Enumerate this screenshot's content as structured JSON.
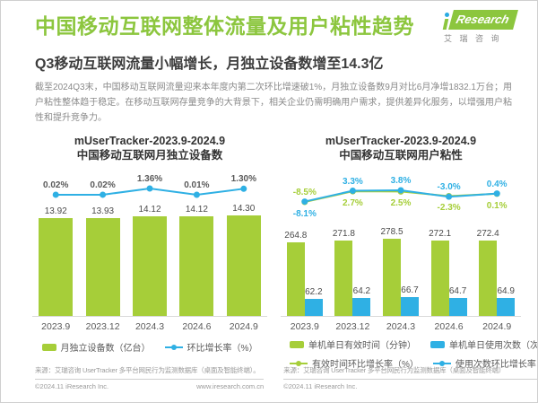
{
  "page": {
    "header": {
      "title": "中国移动互联网整体流量及用户粘性趋势",
      "subtitle": "Q3移动互联网流量小幅增长，月独立设备数增至14.3亿",
      "logo": {
        "brand": "Research",
        "sub": "艾 瑞 咨 询"
      }
    },
    "intro": "截至2024Q3末，中国移动互联网流量迎来本年度内第二次环比增速破1%，月独立设备数9月对比6月净增1832.1万台；用户粘性整体趋于稳定。在移动互联网存量竞争的大背景下，相关企业仍需明确用户需求，提供差异化服务，以增强用户粘性和提升竞争力。",
    "colors": {
      "green": "#8CC63E",
      "bar_green": "#A6CE39",
      "blue": "#2FB0E4",
      "label_gray": "#595959"
    },
    "footers": {
      "left": {
        "source": "来源：艾瑞咨询 UserTracker 多平台网民行为监测数据库（桌面及智能终端）。",
        "copyright": "©2024.11 iResearch Inc.",
        "website": "www.iresearch.com.cn"
      },
      "right": {
        "source": "来源：艾瑞咨询 UserTracker 多平台网民行为监测数据库（桌面及智能终端）",
        "copyright": "©2024.11 iResearch Inc."
      }
    }
  },
  "chart_data": [
    {
      "type": "bar",
      "title": "mUserTracker-2023.9-2024.9",
      "subtitle": "中国移动互联网月独立设备数",
      "categories": [
        "2023.9",
        "2023.12",
        "2024.3",
        "2024.6",
        "2024.9"
      ],
      "bar_series": [
        {
          "name": "月独立设备数（亿台）",
          "color": "#A6CE39",
          "values": [
            13.92,
            13.93,
            14.12,
            14.12,
            14.3
          ],
          "labels": [
            "13.92",
            "13.93",
            "14.12",
            "14.12",
            "14.30"
          ]
        }
      ],
      "line_series": [
        {
          "name": "环比增长率（%）",
          "color": "#2FB0E4",
          "label_color": "#595959",
          "values": [
            0.02,
            0.02,
            1.36,
            0.01,
            1.3
          ],
          "labels": [
            "0.02%",
            "0.02%",
            "1.36%",
            "0.01%",
            "1.30%"
          ],
          "label_pos": [
            "above",
            "above",
            "above",
            "above",
            "above"
          ]
        }
      ],
      "legend_rows": [
        [
          {
            "swatch": "bar",
            "color": "#A6CE39",
            "label": "月独立设备数（亿台）"
          },
          {
            "swatch": "line",
            "color": "#2FB0E4",
            "label": "环比增长率（%）"
          }
        ]
      ],
      "grid": false,
      "legend_position": "bottom"
    },
    {
      "type": "bar",
      "title": "mUserTracker-2023.9-2024.9",
      "subtitle": "中国移动互联网用户粘性",
      "categories": [
        "2023.9",
        "2023.12",
        "2024.3",
        "2024.6",
        "2024.9"
      ],
      "bar_series": [
        {
          "name": "单机单日有效时间（分钟）",
          "color": "#A6CE39",
          "values": [
            264.8,
            271.8,
            278.5,
            272.1,
            272.4
          ],
          "labels": [
            "264.8",
            "271.8",
            "278.5",
            "272.1",
            "272.4"
          ]
        },
        {
          "name": "单机单日使用次数（次）",
          "color": "#2FB0E4",
          "values": [
            62.2,
            64.2,
            66.7,
            64.7,
            64.9
          ],
          "labels": [
            "62.2",
            "64.2",
            "66.7",
            "64.7",
            "64.9"
          ]
        }
      ],
      "line_series": [
        {
          "name": "有效时间环比增长率（%）",
          "color": "#A6CE39",
          "label_color": "#A6CE39",
          "values": [
            -8.5,
            2.7,
            2.5,
            -2.3,
            0.1
          ],
          "labels": [
            "-8.5%",
            "2.7%",
            "2.5%",
            "-2.3%",
            "0.1%"
          ],
          "label_pos": [
            "above",
            "below",
            "below",
            "below",
            "below"
          ]
        },
        {
          "name": "使用次数环比增长率（%）",
          "color": "#2FB0E4",
          "label_color": "#2FB0E4",
          "values": [
            -8.1,
            3.3,
            3.8,
            -3.0,
            0.4
          ],
          "labels": [
            "-8.1%",
            "3.3%",
            "3.8%",
            "-3.0%",
            "0.4%"
          ],
          "label_pos": [
            "below",
            "above",
            "above",
            "above",
            "above"
          ]
        }
      ],
      "legend_rows": [
        [
          {
            "swatch": "bar",
            "color": "#A6CE39",
            "label": "单机单日有效时间（分钟）"
          },
          {
            "swatch": "bar",
            "color": "#2FB0E4",
            "label": "单机单日使用次数（次）"
          }
        ],
        [
          {
            "swatch": "line",
            "color": "#A6CE39",
            "label": "有效时间环比增长率（%）"
          },
          {
            "swatch": "line",
            "color": "#2FB0E4",
            "label": "使用次数环比增长率（%）"
          }
        ]
      ],
      "grid": false,
      "legend_position": "bottom"
    }
  ]
}
